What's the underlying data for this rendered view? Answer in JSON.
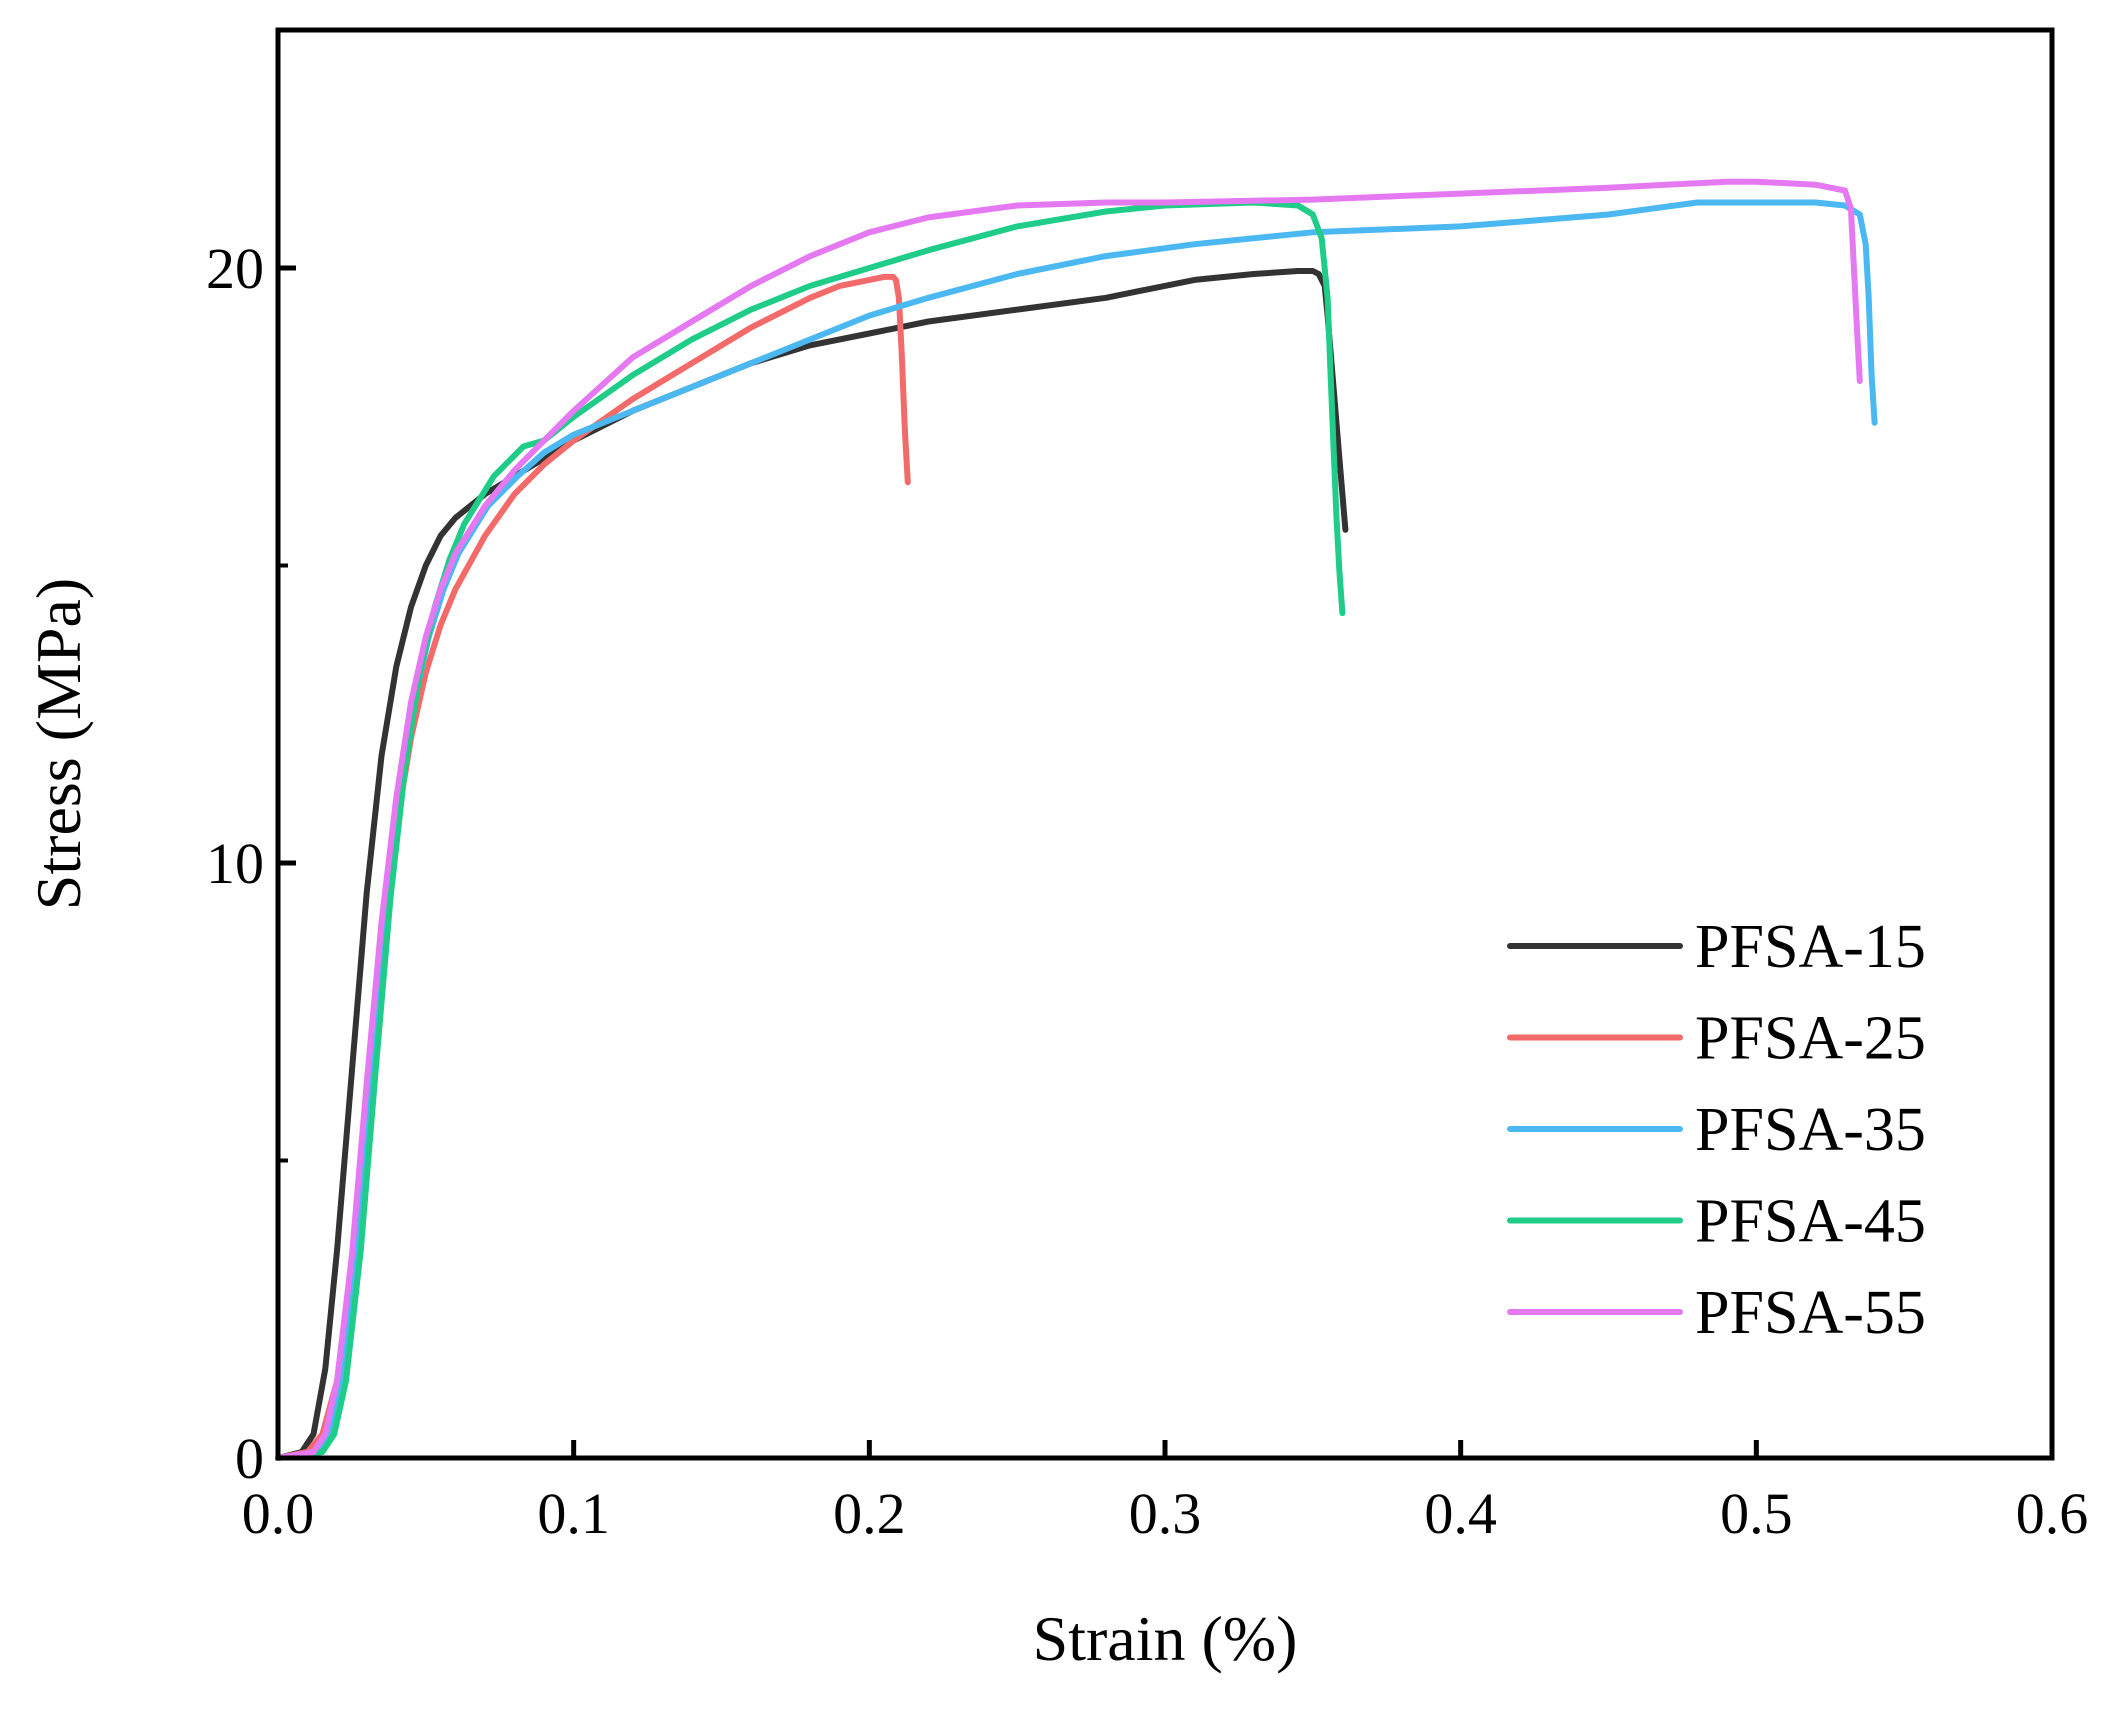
{
  "chart_data": {
    "type": "line",
    "title": "",
    "xlabel": "Strain (%)",
    "ylabel": "Stress (MPa)",
    "xlim": [
      0.0,
      0.6
    ],
    "ylim": [
      0,
      24
    ],
    "x_ticks": [
      0.0,
      0.1,
      0.2,
      0.3,
      0.4,
      0.5,
      0.6
    ],
    "x_tick_labels": [
      "0.0",
      "0.1",
      "0.2",
      "0.3",
      "0.4",
      "0.5",
      "0.6"
    ],
    "y_ticks": [
      0,
      10,
      20
    ],
    "y_tick_labels": [
      "0",
      "10",
      "20"
    ],
    "y_minor_ticks": [
      5,
      15
    ],
    "grid": false,
    "legend_position": "lower-right",
    "series": [
      {
        "name": "PFSA-15",
        "color": "#333333",
        "x": [
          0,
          0.008,
          0.012,
          0.016,
          0.02,
          0.025,
          0.03,
          0.035,
          0.04,
          0.045,
          0.05,
          0.055,
          0.06,
          0.07,
          0.08,
          0.09,
          0.1,
          0.12,
          0.14,
          0.16,
          0.18,
          0.2,
          0.22,
          0.25,
          0.28,
          0.31,
          0.33,
          0.345,
          0.35,
          0.352,
          0.354,
          0.355,
          0.357,
          0.359,
          0.361
        ],
        "y": [
          0,
          0.1,
          0.4,
          1.5,
          3.5,
          6.5,
          9.5,
          11.8,
          13.3,
          14.3,
          15.0,
          15.5,
          15.8,
          16.2,
          16.5,
          16.8,
          17.1,
          17.6,
          18.0,
          18.4,
          18.7,
          18.9,
          19.1,
          19.3,
          19.5,
          19.8,
          19.9,
          19.95,
          19.95,
          19.9,
          19.7,
          19.2,
          18.0,
          16.8,
          15.6
        ]
      },
      {
        "name": "PFSA-25",
        "color": "#f26a6a",
        "x": [
          0,
          0.01,
          0.015,
          0.02,
          0.025,
          0.03,
          0.035,
          0.04,
          0.045,
          0.05,
          0.055,
          0.06,
          0.07,
          0.08,
          0.09,
          0.1,
          0.12,
          0.14,
          0.16,
          0.18,
          0.19,
          0.2,
          0.205,
          0.208,
          0.209,
          0.21,
          0.211,
          0.212,
          0.213
        ],
        "y": [
          0,
          0.1,
          0.4,
          1.3,
          3.3,
          6.0,
          8.6,
          10.6,
          12.1,
          13.2,
          14.0,
          14.6,
          15.5,
          16.2,
          16.7,
          17.1,
          17.8,
          18.4,
          19.0,
          19.5,
          19.7,
          19.8,
          19.85,
          19.85,
          19.8,
          19.5,
          18.5,
          17.3,
          16.4
        ]
      },
      {
        "name": "PFSA-35",
        "color": "#4bb8f2",
        "x": [
          0,
          0.013,
          0.017,
          0.021,
          0.026,
          0.031,
          0.036,
          0.041,
          0.046,
          0.051,
          0.056,
          0.061,
          0.071,
          0.081,
          0.09,
          0.1,
          0.12,
          0.14,
          0.16,
          0.18,
          0.2,
          0.22,
          0.25,
          0.28,
          0.31,
          0.35,
          0.4,
          0.45,
          0.48,
          0.5,
          0.52,
          0.53,
          0.535,
          0.537,
          0.538,
          0.539,
          0.54
        ],
        "y": [
          0,
          0.1,
          0.4,
          1.3,
          3.4,
          6.3,
          9.0,
          11.1,
          12.7,
          13.8,
          14.6,
          15.2,
          16.0,
          16.5,
          16.9,
          17.2,
          17.6,
          18.0,
          18.4,
          18.8,
          19.2,
          19.5,
          19.9,
          20.2,
          20.4,
          20.6,
          20.7,
          20.9,
          21.1,
          21.1,
          21.1,
          21.05,
          20.9,
          20.4,
          19.5,
          18.2,
          17.4
        ]
      },
      {
        "name": "PFSA-45",
        "color": "#1fcc88",
        "x": [
          0,
          0.015,
          0.019,
          0.023,
          0.028,
          0.033,
          0.038,
          0.043,
          0.048,
          0.053,
          0.058,
          0.063,
          0.073,
          0.083,
          0.09,
          0.1,
          0.12,
          0.14,
          0.16,
          0.18,
          0.2,
          0.22,
          0.25,
          0.28,
          0.3,
          0.33,
          0.345,
          0.35,
          0.353,
          0.355,
          0.356,
          0.357,
          0.358,
          0.359,
          0.36
        ],
        "y": [
          0,
          0.1,
          0.4,
          1.3,
          3.5,
          6.5,
          9.4,
          11.6,
          13.2,
          14.3,
          15.1,
          15.7,
          16.5,
          17.0,
          17.1,
          17.5,
          18.2,
          18.8,
          19.3,
          19.7,
          20.0,
          20.3,
          20.7,
          20.95,
          21.05,
          21.1,
          21.05,
          20.9,
          20.5,
          19.5,
          18.2,
          17.0,
          15.8,
          14.9,
          14.2
        ]
      },
      {
        "name": "PFSA-55",
        "color": "#e479f2",
        "x": [
          0,
          0.012,
          0.016,
          0.02,
          0.025,
          0.03,
          0.035,
          0.04,
          0.045,
          0.05,
          0.055,
          0.06,
          0.07,
          0.08,
          0.09,
          0.1,
          0.12,
          0.14,
          0.16,
          0.18,
          0.2,
          0.22,
          0.25,
          0.28,
          0.3,
          0.35,
          0.4,
          0.45,
          0.49,
          0.5,
          0.52,
          0.53,
          0.532,
          0.533,
          0.534,
          0.535
        ],
        "y": [
          0,
          0.1,
          0.4,
          1.3,
          3.4,
          6.3,
          9.0,
          11.1,
          12.7,
          13.8,
          14.6,
          15.2,
          16.0,
          16.6,
          17.1,
          17.6,
          18.5,
          19.1,
          19.7,
          20.2,
          20.6,
          20.85,
          21.05,
          21.1,
          21.1,
          21.15,
          21.25,
          21.35,
          21.45,
          21.45,
          21.4,
          21.3,
          21.0,
          20.0,
          19.0,
          18.1
        ]
      }
    ]
  }
}
